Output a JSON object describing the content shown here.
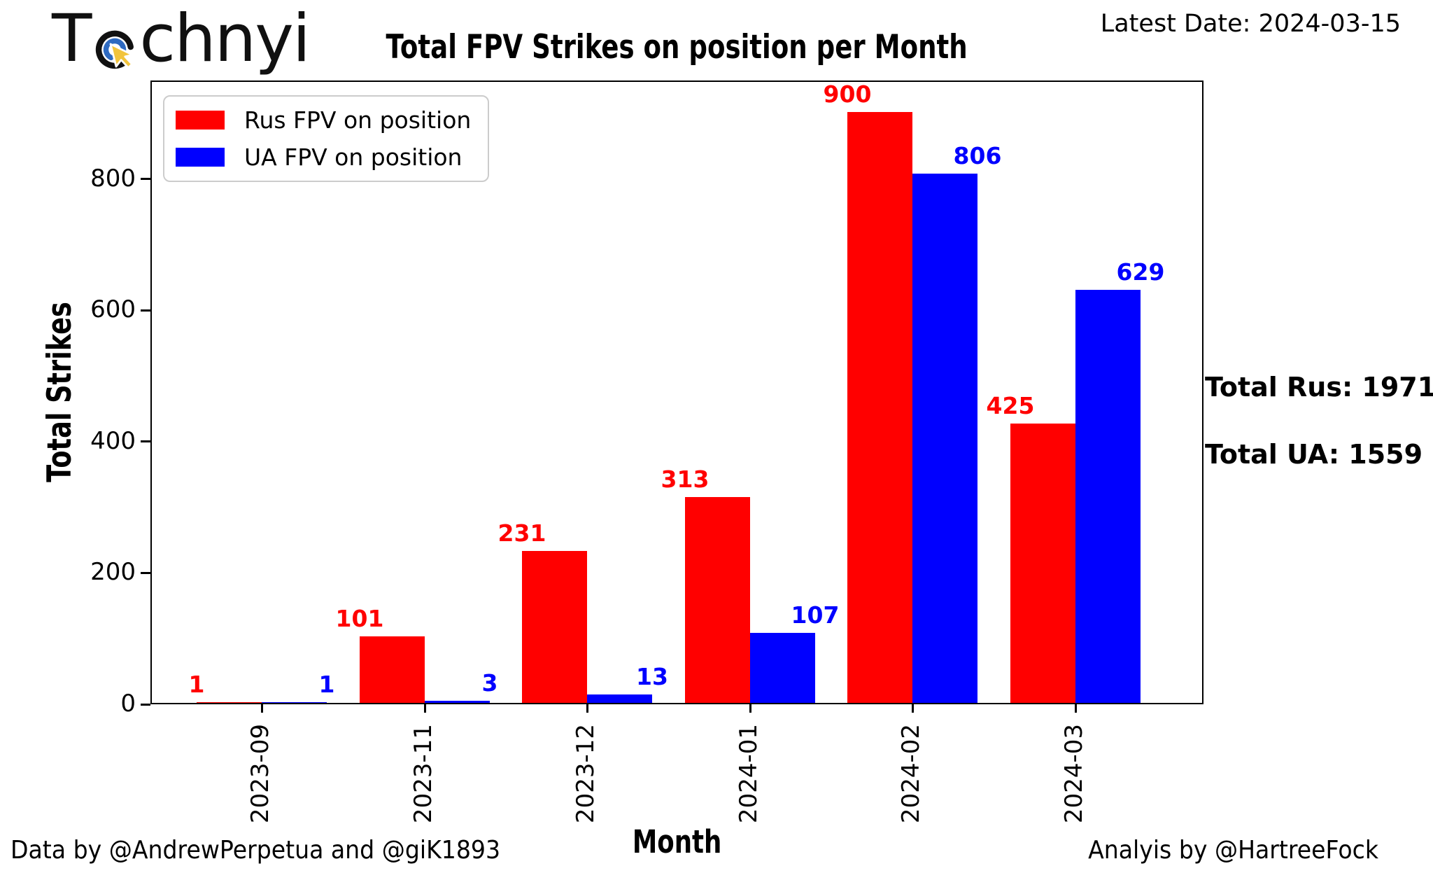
{
  "logo": {
    "text_start": "T",
    "text_end": "chnyi",
    "icon": "cursor-target-icon",
    "colors": {
      "ring_outer": "#111111",
      "ring_inner": "#2e6ac1",
      "cursor": "#f2c43d"
    }
  },
  "header": {
    "latest_date": "Latest Date: 2024-03-15"
  },
  "chart_data": {
    "type": "bar",
    "title": "Total FPV Strikes on position per Month",
    "xlabel": "Month",
    "ylabel": "Total Strikes",
    "categories": [
      "2023-09",
      "2023-11",
      "2023-12",
      "2024-01",
      "2024-02",
      "2024-03"
    ],
    "series": [
      {
        "name": "Rus FPV on position",
        "color": "#ff0000",
        "values": [
          1,
          101,
          231,
          313,
          900,
          425
        ]
      },
      {
        "name": "UA FPV on position",
        "color": "#0000ff",
        "values": [
          1,
          3,
          13,
          107,
          806,
          629
        ]
      }
    ],
    "yticks": [
      0,
      200,
      400,
      600,
      800
    ],
    "ylim": [
      0,
      950
    ],
    "grid": false,
    "legend_position": "upper-left",
    "bar_value_labels": true
  },
  "annotations": {
    "total_rus": "Total Rus: 1971",
    "total_ua": "Total UA: 1559"
  },
  "footer": {
    "left": "Data by @AndrewPerpetua and @giK1893",
    "right": "Analyis by @HartreeFock"
  }
}
